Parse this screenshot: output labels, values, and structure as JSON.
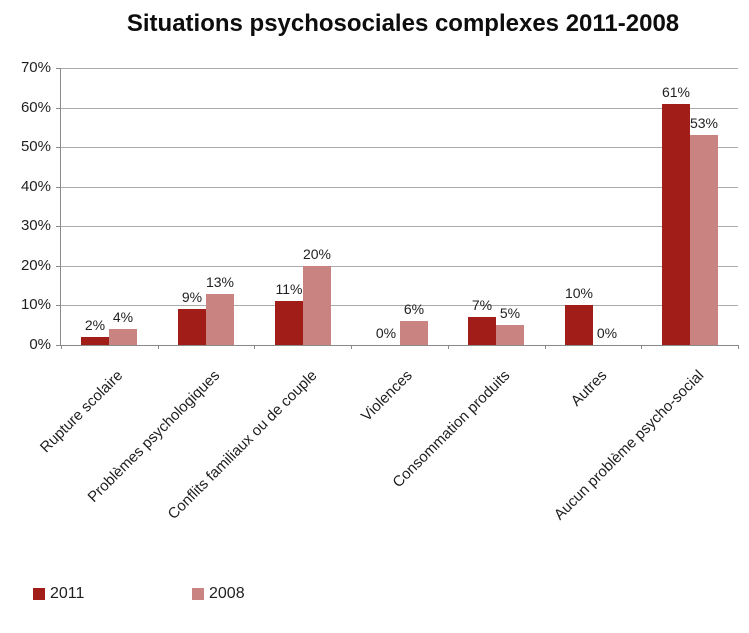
{
  "title": "Situations psychosociales complexes 2011-2008",
  "colors": {
    "series_2011": "#a01d18",
    "series_2008": "#c98380",
    "gridline": "#ababab",
    "axis": "#8a8a8a",
    "text": "#1f1f1f"
  },
  "chart_data": {
    "type": "bar",
    "title": "Situations psychosociales complexes 2011-2008",
    "categories": [
      "Rupture scolaire",
      "Problèmes psychologiques",
      "Conflits familiaux ou de couple",
      "Violences",
      "Consommation produits",
      "Autres",
      "Aucun problème psycho-social"
    ],
    "series": [
      {
        "name": "2011",
        "color": "#a01d18",
        "values": [
          2,
          9,
          11,
          0,
          7,
          10,
          61
        ]
      },
      {
        "name": "2008",
        "color": "#c98380",
        "values": [
          4,
          13,
          20,
          6,
          5,
          0,
          53
        ]
      }
    ],
    "data_labels": [
      [
        "2%",
        "9%",
        "11%",
        "0%",
        "7%",
        "10%",
        "61%"
      ],
      [
        "4%",
        "13%",
        "20%",
        "6%",
        "5%",
        "0%",
        "53%"
      ]
    ],
    "xlabel": "",
    "ylabel": "",
    "ylim": [
      0,
      70
    ],
    "ytick_step": 10,
    "ytick_labels": [
      "0%",
      "10%",
      "20%",
      "30%",
      "40%",
      "50%",
      "60%",
      "70%"
    ],
    "grid": true,
    "legend_position": "bottom-left",
    "x_labels_rotation_deg": -45
  }
}
